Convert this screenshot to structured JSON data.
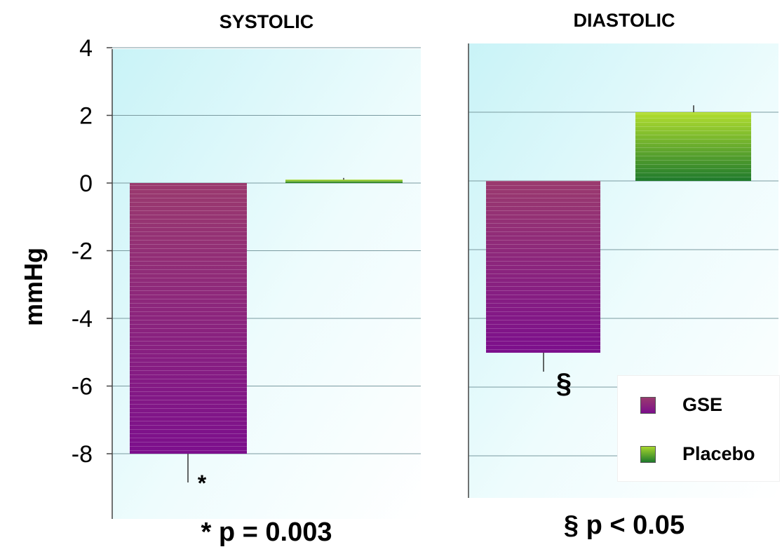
{
  "chart_data": [
    {
      "type": "bar",
      "title": "SYSTOLIC",
      "ylabel": "mmHg",
      "ylim": [
        -10,
        4
      ],
      "yticks": [
        4,
        2,
        0,
        -2,
        -4,
        -6,
        -8
      ],
      "categories": [
        "GSE",
        "Placebo"
      ],
      "values": [
        -8.0,
        0.1
      ],
      "errors": [
        0.85,
        0.05
      ],
      "annotations": [
        "*",
        ""
      ],
      "footnote": "* p = 0.003",
      "grid": true
    },
    {
      "type": "bar",
      "title": "DIASTOLIC",
      "ylim": [
        -9.2,
        4.2
      ],
      "categories": [
        "GSE",
        "Placebo"
      ],
      "values": [
        -5.0,
        2.0
      ],
      "errors": [
        0.55,
        0.2
      ],
      "annotations": [
        "§",
        ""
      ],
      "footnote": "§ p < 0.05",
      "grid": true
    }
  ],
  "legend": {
    "placement": "bottom-right",
    "items": [
      {
        "label": "GSE",
        "color_top": "#9a3a6e",
        "color_bottom": "#7c0f8c"
      },
      {
        "label": "Placebo",
        "color_top": "#a6d62c",
        "color_bottom": "#1f7a2c"
      }
    ]
  },
  "colors": {
    "plot_bg_top": "#d6f7f9",
    "plot_bg_bottom": "#ffffff",
    "grid": "#7a9aa0"
  },
  "footnote_texts": [
    "* p = 0.003",
    "§ p < 0.05"
  ]
}
